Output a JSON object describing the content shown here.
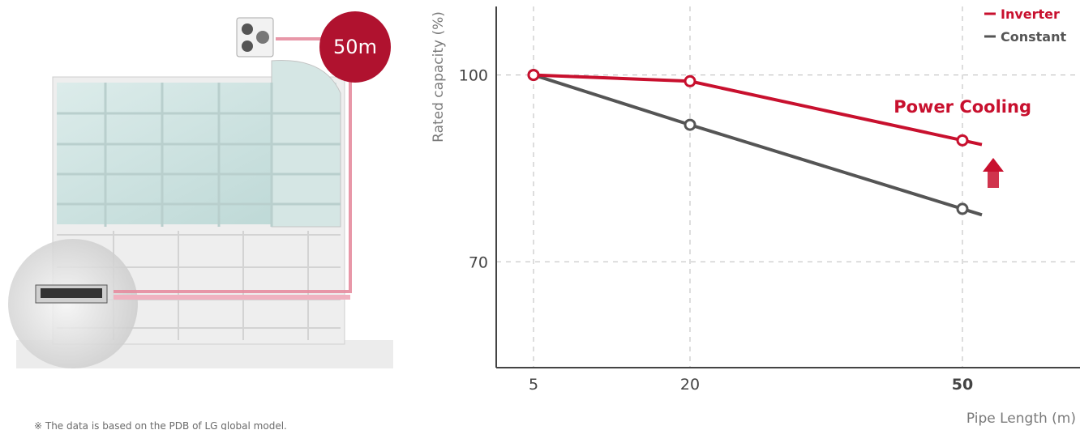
{
  "illustration": {
    "badge_label": "50m",
    "footnote": "※ The data is based on the PDB of LG global model."
  },
  "colors": {
    "inverter": "#c8102e",
    "constant": "#555555",
    "grid": "#bbbbbb",
    "axis": "#444444"
  },
  "chart_data": {
    "type": "line",
    "title": "",
    "xlabel": "Pipe Length (m)",
    "ylabel": "Rated capacity (%)",
    "x": [
      5,
      20,
      50
    ],
    "xtick_labels": [
      "5",
      "20",
      "50"
    ],
    "highlighted_xtick": "50",
    "yticks": [
      70,
      100
    ],
    "ytick_labels": [
      "70",
      "100"
    ],
    "ylim": [
      53,
      111
    ],
    "grid": true,
    "legend_position": "top-right",
    "series": [
      {
        "name": "Inverter",
        "values": [
          100,
          99,
          89.5
        ],
        "color": "#c8102e"
      },
      {
        "name": "Constant",
        "values": [
          100,
          92,
          78.5
        ],
        "color": "#555555"
      }
    ],
    "annotations": [
      {
        "text": "Power Cooling"
      }
    ]
  }
}
